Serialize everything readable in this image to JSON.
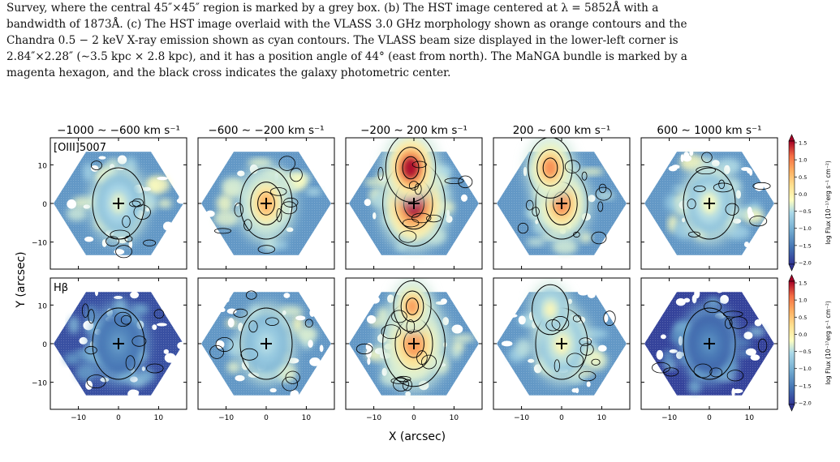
{
  "caption": {
    "lines": [
      "Survey, where the central 45″×45″ region is marked by a grey box.  (b) The HST image centered at λ = 5852Å with a",
      "bandwidth of 1873Å.  (c) The HST image overlaid with the VLASS 3.0 GHz morphology shown as orange contours and the",
      "Chandra 0.5 − 2 keV X-ray emission shown as cyan contours.  The VLASS beam size displayed in the lower-left corner is",
      "2.84″×2.28″ (∼3.5 kpc × 2.8 kpc), and it has a position angle of 44° (east from north). The MaNGA bundle is marked by a",
      "magenta hexagon, and the black cross indicates the galaxy photometric center."
    ]
  },
  "figure": {
    "xlabel": "X (arcsec)",
    "ylabel": "Y (arcsec)",
    "colorbar_label": "log Flux (10⁻¹⁷erg s⁻¹ cm⁻²)",
    "colorbar_ticks": [
      "1.5",
      "1.0",
      "0.5",
      "0.0",
      "−0.5",
      "−1.0",
      "−1.5",
      "−2.0"
    ],
    "column_titles": [
      "−1000 ∼ −600 km s⁻¹",
      "−600 ∼ −200 km s⁻¹",
      "−200 ∼ 200 km s⁻¹",
      "200 ∼ 600 km s⁻¹",
      "600 ∼ 1000 km s⁻¹"
    ],
    "row_labels": [
      "[OIII]5007",
      "Hβ"
    ],
    "y_ticks": [
      "10",
      "0",
      "−10"
    ],
    "x_ticks": [
      "−10",
      "0",
      "10"
    ]
  },
  "chart_data": {
    "type": "heatmap",
    "grid": "5 columns × 2 rows of velocity-channel flux maps",
    "xlabel": "X (arcsec)",
    "ylabel": "Y (arcsec)",
    "xlim": [
      -17,
      17
    ],
    "ylim": [
      -17,
      17
    ],
    "colorbar_range": [
      -2.0,
      1.5
    ],
    "colormap": "RdYlBu_r",
    "rows": [
      "[OIII]5007",
      "Hβ"
    ],
    "columns": [
      "−1000 ∼ −600 km s⁻¹",
      "−600 ∼ −200 km s⁻¹",
      "−200 ∼ 200 km s⁻¹",
      "200 ∼ 600 km s⁻¹",
      "600 ∼ 1000 km s⁻¹"
    ],
    "peak_log_flux": [
      [
        -0.3,
        0.6,
        1.5,
        0.9,
        -0.2
      ],
      [
        -1.2,
        -0.5,
        0.8,
        -0.1,
        -1.3
      ]
    ]
  }
}
